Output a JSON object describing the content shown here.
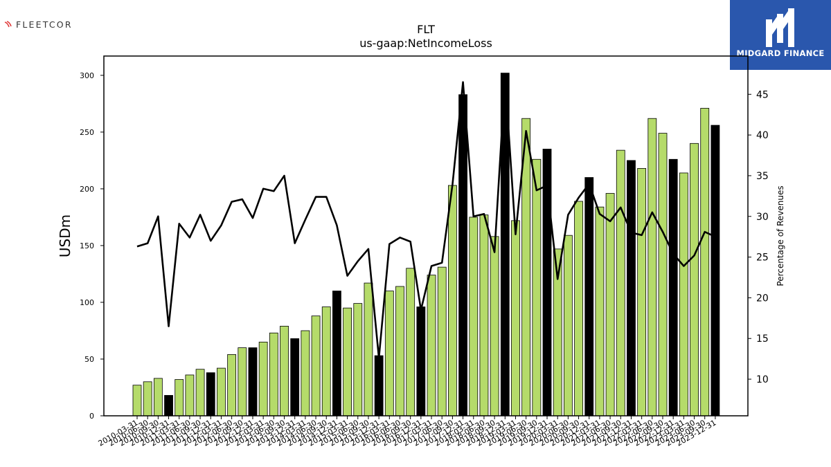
{
  "logos": {
    "left_text": "FLEETCOR",
    "right_text": "MIDGARD FINANCE",
    "right_bg": "#2a57ad"
  },
  "chart_data": {
    "type": "bar",
    "title": "FLT",
    "subtitle": "us-gaap:NetIncomeLoss",
    "ylabel": "USDm",
    "y2label": "Percentage of Revenues",
    "ylim": [
      0,
      317
    ],
    "y2lim": [
      5.5,
      49.7
    ],
    "yticks": [
      0,
      50,
      100,
      150,
      200,
      250,
      300
    ],
    "y2ticks": [
      10,
      15,
      20,
      25,
      30,
      35,
      40,
      45
    ],
    "colors": {
      "quarter": "#b5db6a",
      "annual": "#000000",
      "line": "#000000"
    },
    "x_tick_labels": [
      "2010-03-31",
      "2010-06-30",
      "2010-09-30",
      "2010-12-31",
      "2011-03-31",
      "2011-06-30",
      "2011-09-30",
      "2011-12-31",
      "2012-03-31",
      "2012-06-30",
      "2012-09-30",
      "2012-12-31",
      "2013-03-31",
      "2013-06-30",
      "2013-09-30",
      "2013-12-31",
      "2014-03-31",
      "2014-06-30",
      "2014-09-30",
      "2014-12-31",
      "2015-03-31",
      "2015-06-30",
      "2015-09-30",
      "2015-12-31",
      "2016-03-31",
      "2016-06-30",
      "2016-09-30",
      "2016-12-31",
      "2017-03-31",
      "2017-06-30",
      "2017-09-30",
      "2017-12-31",
      "2018-03-31",
      "2018-06-30",
      "2018-09-30",
      "2018-12-31",
      "2019-03-31",
      "2019-06-30",
      "2019-09-30",
      "2019-12-31",
      "2020-03-31",
      "2020-06-30",
      "2020-09-30",
      "2020-12-31",
      "2021-03-31",
      "2021-06-30",
      "2021-09-30",
      "2021-12-31",
      "2022-03-31",
      "2022-06-30",
      "2022-09-30",
      "2022-12-31",
      "2023-03-31",
      "2023-06-30",
      "2023-09-30",
      "2023-12-31"
    ],
    "bars": [
      {
        "v": 27,
        "t": "q"
      },
      {
        "v": 30,
        "t": "q"
      },
      {
        "v": 33,
        "t": "q"
      },
      {
        "v": 18,
        "t": "a"
      },
      {
        "v": 32,
        "t": "q"
      },
      {
        "v": 36,
        "t": "q"
      },
      {
        "v": 41,
        "t": "q"
      },
      {
        "v": 38,
        "t": "a"
      },
      {
        "v": 42,
        "t": "q"
      },
      {
        "v": 54,
        "t": "q"
      },
      {
        "v": 60,
        "t": "q"
      },
      {
        "v": 60,
        "t": "a"
      },
      {
        "v": 65,
        "t": "q"
      },
      {
        "v": 73,
        "t": "q"
      },
      {
        "v": 79,
        "t": "q"
      },
      {
        "v": 68,
        "t": "a"
      },
      {
        "v": 75,
        "t": "q"
      },
      {
        "v": 88,
        "t": "q"
      },
      {
        "v": 96,
        "t": "q"
      },
      {
        "v": 110,
        "t": "a"
      },
      {
        "v": 95,
        "t": "q"
      },
      {
        "v": 99,
        "t": "q"
      },
      {
        "v": 117,
        "t": "q"
      },
      {
        "v": 53,
        "t": "a"
      },
      {
        "v": 110,
        "t": "q"
      },
      {
        "v": 114,
        "t": "q"
      },
      {
        "v": 130,
        "t": "q"
      },
      {
        "v": 96,
        "t": "a"
      },
      {
        "v": 124,
        "t": "q"
      },
      {
        "v": 131,
        "t": "q"
      },
      {
        "v": 203,
        "t": "q"
      },
      {
        "v": 283,
        "t": "a"
      },
      {
        "v": 175,
        "t": "q"
      },
      {
        "v": 177,
        "t": "q"
      },
      {
        "v": 158,
        "t": "q"
      },
      {
        "v": 302,
        "t": "a"
      },
      {
        "v": 172,
        "t": "q"
      },
      {
        "v": 262,
        "t": "q"
      },
      {
        "v": 226,
        "t": "q"
      },
      {
        "v": 235,
        "t": "a"
      },
      {
        "v": 147,
        "t": "q"
      },
      {
        "v": 159,
        "t": "q"
      },
      {
        "v": 189,
        "t": "q"
      },
      {
        "v": 210,
        "t": "a"
      },
      {
        "v": 184,
        "t": "q"
      },
      {
        "v": 196,
        "t": "q"
      },
      {
        "v": 234,
        "t": "q"
      },
      {
        "v": 225,
        "t": "a"
      },
      {
        "v": 218,
        "t": "q"
      },
      {
        "v": 262,
        "t": "q"
      },
      {
        "v": 249,
        "t": "q"
      },
      {
        "v": 226,
        "t": "a"
      },
      {
        "v": 214,
        "t": "q"
      },
      {
        "v": 240,
        "t": "q"
      },
      {
        "v": 271,
        "t": "q"
      },
      {
        "v": 256,
        "t": "a"
      }
    ],
    "line_pct": [
      26.3,
      26.7,
      30.0,
      16.5,
      29.1,
      27.4,
      30.2,
      27.0,
      28.9,
      31.8,
      32.1,
      29.8,
      33.4,
      33.1,
      35.0,
      26.7,
      29.6,
      32.4,
      32.4,
      28.9,
      22.7,
      24.5,
      26.0,
      12.6,
      26.6,
      27.4,
      26.9,
      18.5,
      23.9,
      24.3,
      33.9,
      46.5,
      30.0,
      30.3,
      25.6,
      47.0,
      27.8,
      40.5,
      33.2,
      33.8,
      22.3,
      30.2,
      32.3,
      34.0,
      30.3,
      29.4,
      31.1,
      28.0,
      27.7,
      30.5,
      28.1,
      25.4,
      23.9,
      25.2,
      28.1,
      27.5
    ]
  }
}
